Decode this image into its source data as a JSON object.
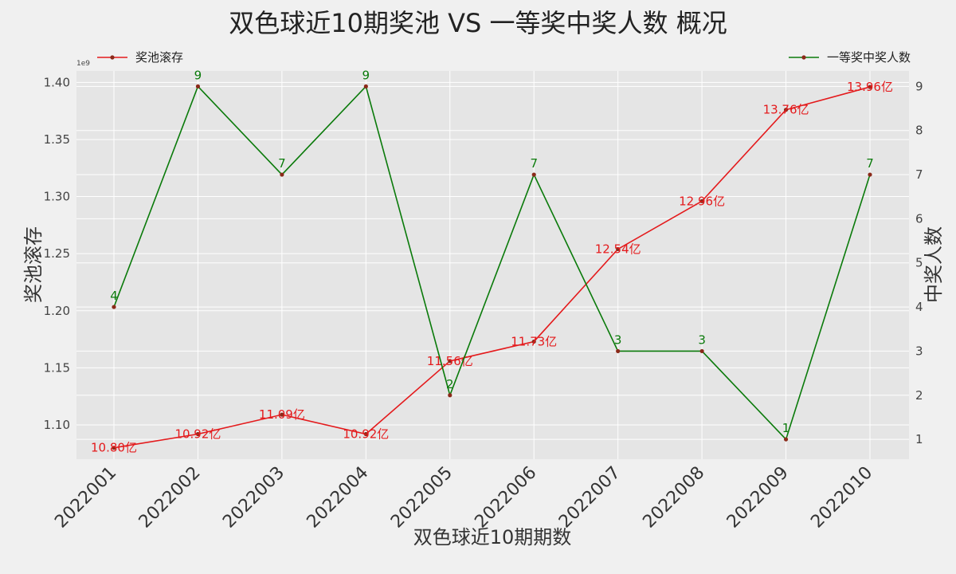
{
  "chart_data": {
    "type": "line",
    "title": "双色球近10期奖池 VS 一等奖中奖人数 概况",
    "xlabel": "双色球近10期期数",
    "ylabel_left": "奖池滚存",
    "ylabel_right": "中奖人数",
    "left_axis_exponent": "1e9",
    "categories": [
      "2022001",
      "2022002",
      "2022003",
      "2022004",
      "2022005",
      "2022006",
      "2022007",
      "2022008",
      "2022009",
      "2022010"
    ],
    "ylim_left": [
      1.07,
      1.41
    ],
    "ylim_right": [
      0.55,
      9.35
    ],
    "yticks_left": [
      "1.10",
      "1.15",
      "1.20",
      "1.25",
      "1.30",
      "1.35",
      "1.40"
    ],
    "yticks_right": [
      "1",
      "2",
      "3",
      "4",
      "5",
      "6",
      "7",
      "8",
      "9"
    ],
    "grid": true,
    "series": [
      {
        "name": "奖池滚存",
        "axis": "left",
        "color": "#e41a1c",
        "values": [
          1.08,
          1.092,
          1.109,
          1.092,
          1.156,
          1.173,
          1.254,
          1.296,
          1.376,
          1.396
        ],
        "labels": [
          "10.80亿",
          "10.92亿",
          "11.09亿",
          "10.92亿",
          "11.56亿",
          "11.73亿",
          "12.54亿",
          "12.96亿",
          "13.76亿",
          "13.96亿"
        ],
        "legend_position": "top-left"
      },
      {
        "name": "一等奖中奖人数",
        "axis": "right",
        "color": "#0a7a0a",
        "values": [
          4,
          9,
          7,
          9,
          2,
          7,
          3,
          3,
          1,
          7
        ],
        "labels": [
          "4",
          "9",
          "7",
          "9",
          "2",
          "7",
          "3",
          "3",
          "1",
          "7"
        ],
        "legend_position": "top-right"
      }
    ]
  }
}
